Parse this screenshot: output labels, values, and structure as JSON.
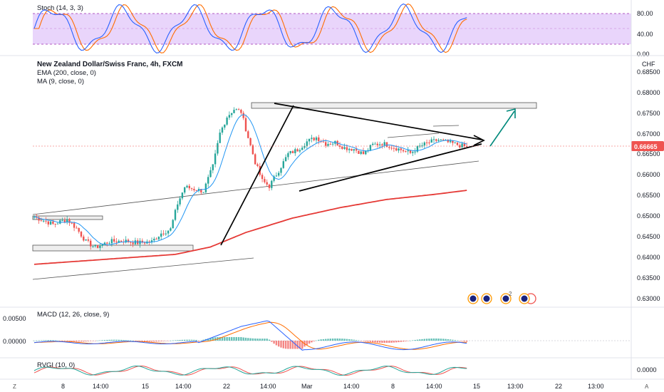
{
  "colors": {
    "bull": "#26a69a",
    "bear": "#ef5350",
    "ema": "#e53935",
    "ma": "#2196f3",
    "stoch_k": "#2962ff",
    "stoch_d": "#ff6d00",
    "stoch_band": "#e9d5fb",
    "macd_line": "#2962ff",
    "macd_signal": "#ff6d00",
    "rvgi": "#26a69a",
    "rvgi_signal": "#ef5350",
    "arrow_teal": "#00897b",
    "price_badge": "#ef5350"
  },
  "header": {
    "symbol_title": "New Zealand Dollar/Swiss Franc, 4h, FXCM",
    "ema_label": "EMA (200, close, 0)",
    "ma_label": "MA (9, close, 0)",
    "currency": "CHF"
  },
  "indicators": {
    "stoch_label": "Stoch (14, 3, 3)",
    "macd_label": "MACD (12, 26, close, 9)",
    "rvgi_label": "RVGI (10, 0)"
  },
  "price_axis": {
    "ticks": [
      "0.68500",
      "0.68000",
      "0.67500",
      "0.67000",
      "0.66500",
      "0.66000",
      "0.65500",
      "0.65000",
      "0.64500",
      "0.64000",
      "0.63500",
      "0.63000"
    ],
    "current_price": "0.66665"
  },
  "stoch_axis": {
    "ticks": [
      "80.00",
      "40.00",
      "0.00"
    ]
  },
  "macd_axis": {
    "ticks": [
      "0.00500",
      "0.00000"
    ]
  },
  "rvgi_axis": {
    "ticks": [
      "0.0000"
    ]
  },
  "time_axis": {
    "labels": [
      "8",
      "14:00",
      "15",
      "14:00",
      "22",
      "14:00",
      "Mar",
      "14:00",
      "8",
      "14:00",
      "15",
      "13:00",
      "22",
      "13:00"
    ],
    "left_button": "Z",
    "right_button": "A"
  },
  "event_badges": {
    "count_label": "2"
  },
  "chart_data": {
    "type": "candlestick",
    "title": "New Zealand Dollar/Swiss Franc, 4h, FXCM",
    "price_range": [
      0.628,
      0.689
    ],
    "overlays": [
      "EMA (200, close, 0)",
      "MA (9, close, 0)"
    ],
    "annotations": [
      "resistance zone near 0.6765-0.6775",
      "support zone near 0.6425-0.6440",
      "small box near 0.6497",
      "symmetrical triangle from 0.6765 high and 0.6560 low converging near 0.6668",
      "projected breakout arrow toward 0.6755"
    ],
    "price_anchors": [
      [
        0,
        0.6498
      ],
      [
        8,
        0.648
      ],
      [
        14,
        0.6492
      ],
      [
        18,
        0.647
      ],
      [
        22,
        0.6438
      ],
      [
        26,
        0.6424
      ],
      [
        32,
        0.6438
      ],
      [
        38,
        0.644
      ],
      [
        44,
        0.6435
      ],
      [
        50,
        0.6438
      ],
      [
        54,
        0.6458
      ],
      [
        58,
        0.6468
      ],
      [
        61,
        0.653
      ],
      [
        64,
        0.657
      ],
      [
        68,
        0.6565
      ],
      [
        72,
        0.656
      ],
      [
        76,
        0.662
      ],
      [
        79,
        0.67
      ],
      [
        82,
        0.674
      ],
      [
        85,
        0.6758
      ],
      [
        88,
        0.6752
      ],
      [
        91,
        0.669
      ],
      [
        94,
        0.663
      ],
      [
        97,
        0.6585
      ],
      [
        100,
        0.6572
      ],
      [
        104,
        0.661
      ],
      [
        108,
        0.665
      ],
      [
        112,
        0.666
      ],
      [
        116,
        0.668
      ],
      [
        120,
        0.669
      ],
      [
        124,
        0.6675
      ],
      [
        128,
        0.6678
      ],
      [
        132,
        0.6665
      ],
      [
        136,
        0.6662
      ],
      [
        140,
        0.665
      ],
      [
        144,
        0.6672
      ],
      [
        148,
        0.6676
      ],
      [
        152,
        0.6668
      ],
      [
        156,
        0.666
      ],
      [
        160,
        0.6652
      ],
      [
        164,
        0.6668
      ],
      [
        168,
        0.6678
      ],
      [
        172,
        0.6684
      ],
      [
        176,
        0.6678
      ],
      [
        180,
        0.6672
      ],
      [
        184,
        0.6667
      ]
    ],
    "ema200_anchors": [
      [
        0,
        0.6383
      ],
      [
        30,
        0.6395
      ],
      [
        60,
        0.6407
      ],
      [
        75,
        0.6425
      ],
      [
        90,
        0.646
      ],
      [
        110,
        0.6495
      ],
      [
        130,
        0.652
      ],
      [
        150,
        0.654
      ],
      [
        170,
        0.6552
      ],
      [
        184,
        0.6562
      ]
    ]
  }
}
